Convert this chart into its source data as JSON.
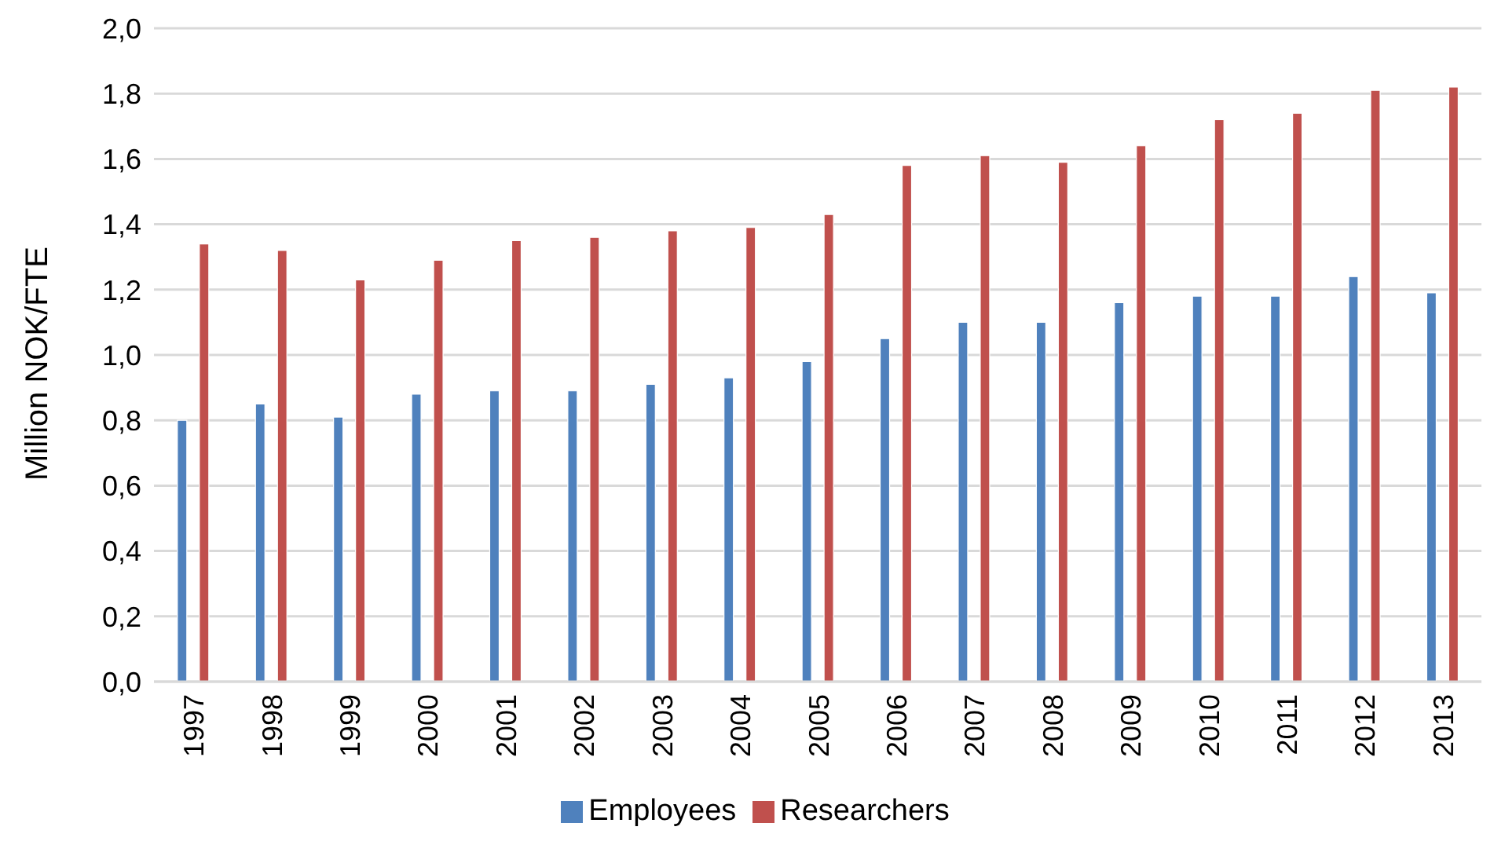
{
  "chart_data": {
    "type": "bar",
    "categories": [
      "1997",
      "1998",
      "1999",
      "2000",
      "2001",
      "2002",
      "2003",
      "2004",
      "2005",
      "2006",
      "2007",
      "2008",
      "2009",
      "2010",
      "2011",
      "2012",
      "2013"
    ],
    "series": [
      {
        "name": "Employees",
        "color": "#4f81bd",
        "values": [
          0.8,
          0.85,
          0.81,
          0.88,
          0.89,
          0.89,
          0.91,
          0.93,
          0.98,
          1.05,
          1.1,
          1.1,
          1.16,
          1.18,
          1.18,
          1.24,
          1.19
        ]
      },
      {
        "name": "Researchers",
        "color": "#c0504d",
        "values": [
          1.34,
          1.32,
          1.23,
          1.29,
          1.35,
          1.36,
          1.38,
          1.39,
          1.43,
          1.58,
          1.61,
          1.59,
          1.64,
          1.72,
          1.74,
          1.81,
          1.82
        ]
      }
    ],
    "ylabel": "Million NOK/FTE",
    "ylim": [
      0,
      2.0
    ],
    "yticks": [
      {
        "value": 0,
        "label": "0,0"
      },
      {
        "value": 0.2,
        "label": "0,2"
      },
      {
        "value": 0.4,
        "label": "0,4"
      },
      {
        "value": 0.6,
        "label": "0,6"
      },
      {
        "value": 0.8,
        "label": "0,8"
      },
      {
        "value": 1.0,
        "label": "1,0"
      },
      {
        "value": 1.2,
        "label": "1,2"
      },
      {
        "value": 1.4,
        "label": "1,4"
      },
      {
        "value": 1.6,
        "label": "1,6"
      },
      {
        "value": 1.8,
        "label": "1,8"
      },
      {
        "value": 2.0,
        "label": "2,0"
      }
    ],
    "grid": "y",
    "legend": "bottom"
  }
}
